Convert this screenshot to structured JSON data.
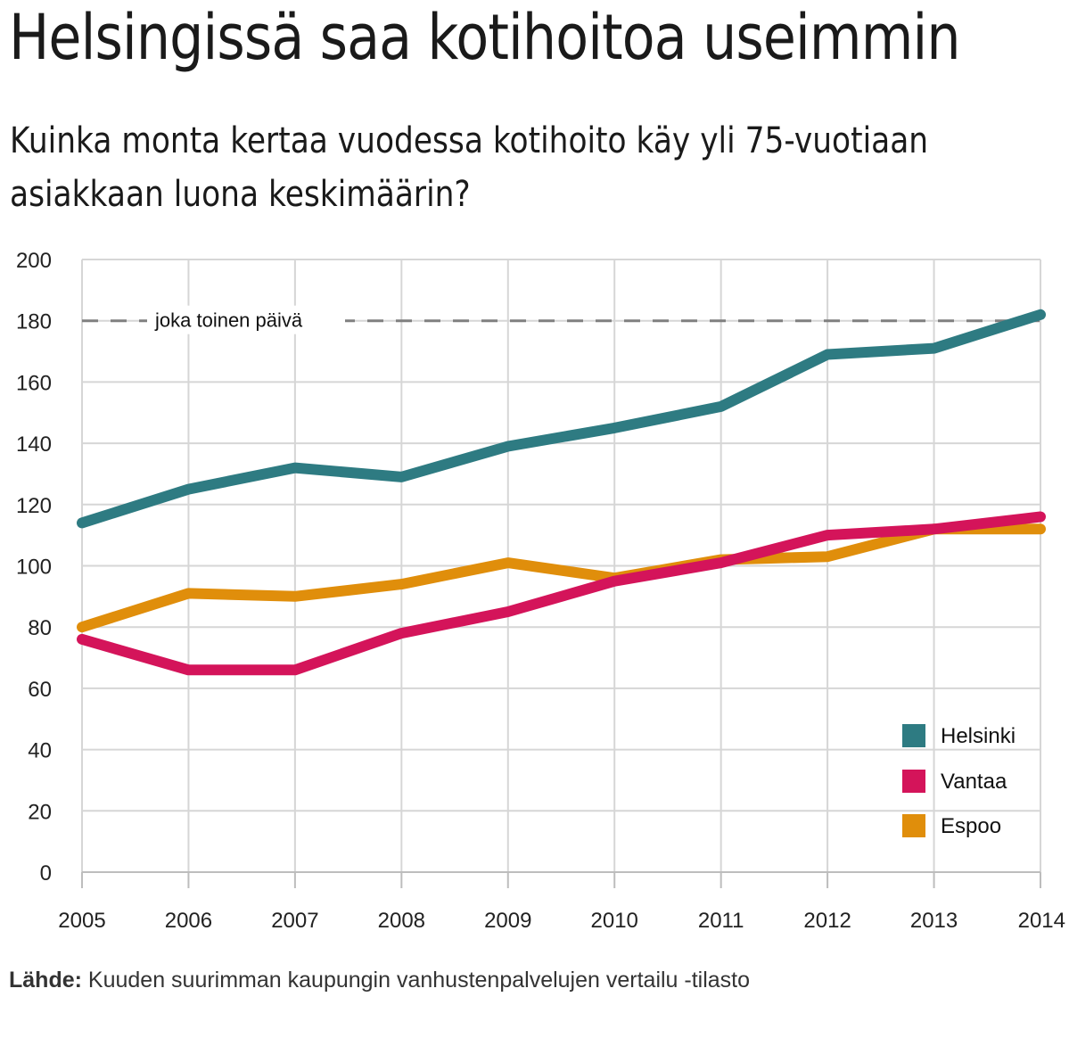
{
  "title": "Helsingissä saa kotihoitoa useimmin",
  "subtitle": "Kuinka monta kertaa vuodessa kotihoito käy yli 75-vuotiaan asiakkaan luona keskimäärin?",
  "source": {
    "label": "Lähde:",
    "text": "Kuuden suurimman kaupungin vanhustenpalvelujen vertailu -tilasto"
  },
  "chart_data": {
    "type": "line",
    "x": [
      2005,
      2006,
      2007,
      2008,
      2009,
      2010,
      2011,
      2012,
      2013,
      2014
    ],
    "ylim": [
      0,
      200
    ],
    "yticks": [
      0,
      20,
      40,
      60,
      80,
      100,
      120,
      140,
      160,
      180,
      200
    ],
    "grid": true,
    "legend_position": "bottom-right",
    "reference_line": {
      "y": 180,
      "label": "joka toinen päivä",
      "style": "dashed",
      "color": "#808080"
    },
    "series": [
      {
        "name": "Helsinki",
        "color": "#2e7b82",
        "values": [
          114,
          125,
          132,
          129,
          139,
          145,
          152,
          169,
          171,
          182
        ]
      },
      {
        "name": "Vantaa",
        "color": "#d4145a",
        "values": [
          76,
          66,
          66,
          78,
          85,
          95,
          101,
          110,
          112,
          116
        ]
      },
      {
        "name": "Espoo",
        "color": "#e08e0b",
        "values": [
          80,
          91,
          90,
          94,
          101,
          96,
          102,
          103,
          112,
          112
        ]
      }
    ]
  }
}
